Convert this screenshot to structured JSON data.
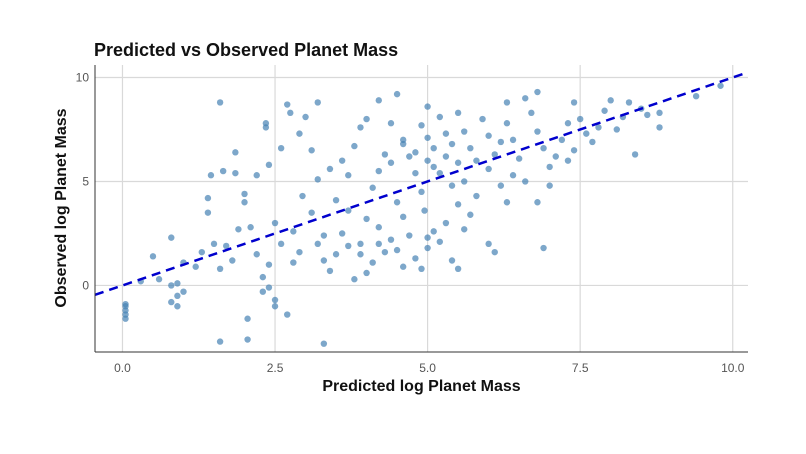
{
  "chart_data": {
    "type": "scatter",
    "title": "Predicted vs Observed Planet Mass",
    "xlabel": "Predicted log Planet Mass",
    "ylabel": "Observed log Planet Mass",
    "xlim": [
      -0.45,
      10.25
    ],
    "ylim": [
      -3.2,
      10.6
    ],
    "xticks": [
      0.0,
      2.5,
      5.0,
      7.5,
      10.0
    ],
    "xtick_labels": [
      "0.0",
      "2.5",
      "5.0",
      "7.5",
      "10.0"
    ],
    "yticks": [
      0,
      5,
      10
    ],
    "ytick_labels": [
      "0",
      "5",
      "10"
    ],
    "grid": true,
    "point_color": "#4682B4",
    "reference_line": {
      "slope": 1,
      "intercept": 0,
      "style": "dashed",
      "color": "#0000CD"
    },
    "points": [
      [
        0.05,
        -1.0
      ],
      [
        0.05,
        -1.2
      ],
      [
        0.05,
        -1.4
      ],
      [
        0.05,
        -1.6
      ],
      [
        0.05,
        -0.9
      ],
      [
        1.6,
        -2.7
      ],
      [
        2.05,
        -2.6
      ],
      [
        3.3,
        -2.8
      ],
      [
        1.6,
        8.8
      ],
      [
        9.4,
        9.1
      ],
      [
        9.8,
        9.6
      ],
      [
        8.8,
        7.6
      ],
      [
        8.8,
        8.3
      ],
      [
        8.4,
        6.3
      ],
      [
        6.9,
        1.8
      ],
      [
        6.8,
        4.0
      ],
      [
        2.7,
        8.7
      ],
      [
        2.75,
        8.3
      ],
      [
        3.2,
        8.8
      ],
      [
        2.35,
        7.8
      ],
      [
        2.35,
        7.6
      ],
      [
        0.5,
        1.4
      ],
      [
        0.8,
        2.3
      ],
      [
        0.9,
        0.1
      ],
      [
        0.8,
        0.0
      ],
      [
        0.9,
        -0.5
      ],
      [
        0.8,
        -0.8
      ],
      [
        0.9,
        -1.0
      ],
      [
        1.0,
        -0.3
      ],
      [
        0.3,
        0.2
      ],
      [
        0.6,
        0.3
      ],
      [
        1.0,
        1.1
      ],
      [
        1.2,
        0.9
      ],
      [
        1.4,
        4.2
      ],
      [
        1.4,
        3.5
      ],
      [
        1.5,
        2.0
      ],
      [
        1.3,
        1.6
      ],
      [
        1.6,
        0.8
      ],
      [
        1.7,
        1.9
      ],
      [
        1.8,
        1.2
      ],
      [
        1.9,
        2.7
      ],
      [
        1.85,
        6.4
      ],
      [
        1.65,
        5.5
      ],
      [
        1.45,
        5.3
      ],
      [
        1.85,
        5.4
      ],
      [
        2.0,
        4.4
      ],
      [
        2.0,
        4.0
      ],
      [
        2.1,
        2.8
      ],
      [
        2.2,
        1.5
      ],
      [
        2.3,
        0.4
      ],
      [
        2.3,
        -0.3
      ],
      [
        2.05,
        -1.6
      ],
      [
        2.5,
        -0.7
      ],
      [
        2.5,
        -1.0
      ],
      [
        2.7,
        -1.4
      ],
      [
        2.4,
        -0.1
      ],
      [
        2.4,
        1.0
      ],
      [
        2.6,
        2.0
      ],
      [
        2.5,
        3.0
      ],
      [
        2.8,
        2.6
      ],
      [
        2.9,
        1.6
      ],
      [
        2.2,
        5.3
      ],
      [
        2.4,
        5.8
      ],
      [
        2.6,
        6.6
      ],
      [
        2.9,
        7.3
      ],
      [
        3.0,
        8.1
      ],
      [
        3.1,
        6.5
      ],
      [
        3.2,
        5.1
      ],
      [
        2.95,
        4.3
      ],
      [
        3.1,
        3.5
      ],
      [
        3.2,
        2.0
      ],
      [
        3.3,
        1.2
      ],
      [
        3.4,
        0.7
      ],
      [
        3.5,
        1.5
      ],
      [
        3.6,
        2.5
      ],
      [
        3.7,
        1.9
      ],
      [
        3.8,
        0.3
      ],
      [
        4.0,
        0.6
      ],
      [
        4.1,
        1.1
      ],
      [
        4.3,
        1.6
      ],
      [
        4.4,
        2.2
      ],
      [
        4.2,
        2.8
      ],
      [
        4.0,
        3.2
      ],
      [
        3.9,
        2.0
      ],
      [
        3.7,
        3.6
      ],
      [
        3.5,
        4.1
      ],
      [
        3.4,
        5.6
      ],
      [
        3.6,
        6.0
      ],
      [
        3.7,
        5.3
      ],
      [
        3.8,
        6.7
      ],
      [
        3.9,
        7.6
      ],
      [
        4.0,
        8.0
      ],
      [
        4.2,
        8.9
      ],
      [
        4.5,
        9.2
      ],
      [
        4.4,
        7.8
      ],
      [
        4.3,
        6.3
      ],
      [
        4.2,
        5.5
      ],
      [
        4.1,
        4.7
      ],
      [
        4.5,
        4.0
      ],
      [
        4.6,
        3.3
      ],
      [
        4.7,
        2.4
      ],
      [
        4.8,
        1.3
      ],
      [
        4.9,
        0.8
      ],
      [
        5.0,
        1.8
      ],
      [
        5.1,
        2.6
      ],
      [
        4.95,
        3.6
      ],
      [
        4.9,
        4.5
      ],
      [
        4.8,
        5.4
      ],
      [
        4.7,
        6.2
      ],
      [
        4.6,
        7.0
      ],
      [
        4.9,
        7.7
      ],
      [
        5.0,
        8.6
      ],
      [
        5.2,
        8.1
      ],
      [
        5.3,
        7.3
      ],
      [
        5.1,
        6.6
      ],
      [
        5.0,
        6.0
      ],
      [
        5.2,
        5.4
      ],
      [
        5.4,
        4.8
      ],
      [
        5.5,
        3.9
      ],
      [
        5.3,
        3.0
      ],
      [
        5.2,
        2.1
      ],
      [
        5.4,
        1.2
      ],
      [
        5.5,
        0.8
      ],
      [
        5.6,
        2.7
      ],
      [
        5.7,
        3.4
      ],
      [
        5.8,
        4.3
      ],
      [
        5.6,
        5.0
      ],
      [
        5.5,
        5.9
      ],
      [
        5.7,
        6.6
      ],
      [
        5.6,
        7.4
      ],
      [
        5.5,
        8.3
      ],
      [
        5.9,
        8.0
      ],
      [
        6.0,
        7.2
      ],
      [
        6.1,
        6.3
      ],
      [
        6.0,
        5.6
      ],
      [
        6.2,
        4.8
      ],
      [
        6.3,
        4.0
      ],
      [
        6.0,
        2.0
      ],
      [
        6.1,
        1.6
      ],
      [
        6.4,
        5.3
      ],
      [
        6.5,
        6.1
      ],
      [
        6.4,
        7.0
      ],
      [
        6.3,
        7.8
      ],
      [
        6.3,
        8.8
      ],
      [
        6.6,
        9.0
      ],
      [
        6.8,
        9.3
      ],
      [
        6.7,
        8.3
      ],
      [
        6.8,
        7.4
      ],
      [
        6.9,
        6.6
      ],
      [
        7.0,
        5.7
      ],
      [
        7.1,
        6.2
      ],
      [
        7.2,
        7.0
      ],
      [
        7.3,
        7.8
      ],
      [
        7.4,
        8.8
      ],
      [
        7.5,
        8.0
      ],
      [
        7.6,
        7.3
      ],
      [
        7.4,
        6.5
      ],
      [
        7.7,
        6.9
      ],
      [
        7.8,
        7.6
      ],
      [
        7.9,
        8.4
      ],
      [
        8.0,
        8.9
      ],
      [
        8.1,
        7.5
      ],
      [
        8.2,
        8.1
      ],
      [
        8.3,
        8.8
      ],
      [
        8.5,
        8.5
      ],
      [
        8.6,
        8.2
      ],
      [
        7.3,
        6.0
      ],
      [
        7.0,
        4.8
      ],
      [
        6.6,
        5.0
      ],
      [
        4.4,
        5.9
      ],
      [
        4.6,
        6.8
      ],
      [
        5.0,
        7.1
      ],
      [
        5.3,
        6.2
      ],
      [
        4.8,
        6.4
      ],
      [
        5.1,
        5.7
      ],
      [
        5.4,
        6.8
      ],
      [
        5.8,
        6.0
      ],
      [
        6.2,
        6.9
      ],
      [
        4.5,
        1.7
      ],
      [
        4.2,
        2.0
      ],
      [
        3.9,
        1.5
      ],
      [
        4.6,
        0.9
      ],
      [
        5.0,
        2.3
      ],
      [
        3.3,
        2.4
      ],
      [
        2.8,
        1.1
      ]
    ]
  }
}
